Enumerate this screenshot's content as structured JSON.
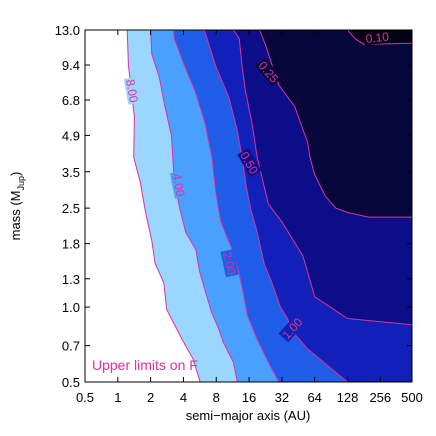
{
  "chart_data": {
    "type": "contour",
    "xlabel": "semi−major axis (AU)",
    "ylabel_main": "mass (M",
    "ylabel_sub": "Jup",
    "ylabel_close": ")",
    "x_scale": "log2",
    "y_scale": "log",
    "xlim": [
      0.5,
      500
    ],
    "ylim": [
      0.5,
      13.0
    ],
    "x_ticks": [
      0.5,
      1,
      2,
      4,
      8,
      16,
      32,
      64,
      128,
      256,
      500
    ],
    "x_tick_labels": [
      "0.5",
      "1",
      "2",
      "4",
      "8",
      "16",
      "32",
      "64",
      "128",
      "256",
      "500"
    ],
    "y_ticks": [
      0.5,
      0.7,
      1.0,
      1.3,
      1.8,
      2.5,
      3.5,
      4.9,
      6.8,
      9.4,
      13.0
    ],
    "y_tick_labels": [
      "0.5",
      "0.7",
      "1.0",
      "1.3",
      "1.8",
      "2.5",
      "3.5",
      "4.9",
      "6.8",
      "9.4",
      "13.0"
    ],
    "annotation": "Upper limits on F",
    "line_color": "#e0309a",
    "contours": [
      {
        "level": 8.0,
        "label": "8.00",
        "fill": "#9ad6ff",
        "label_at": [
          1.35,
          7.4
        ],
        "label_rotation": 80,
        "boundary": [
          [
            1.22,
            13.0
          ],
          [
            1.25,
            9.4
          ],
          [
            1.42,
            5.8
          ],
          [
            1.4,
            4.0
          ],
          [
            1.6,
            3.2
          ],
          [
            1.8,
            2.4
          ],
          [
            2.05,
            1.85
          ],
          [
            2.2,
            1.5
          ],
          [
            2.65,
            1.25
          ],
          [
            2.8,
            0.98
          ],
          [
            3.9,
            0.74
          ],
          [
            4.9,
            0.62
          ],
          [
            5.7,
            0.5
          ]
        ]
      },
      {
        "level": 4.0,
        "label": "4.00",
        "fill": "#4aa0ff",
        "label_at": [
          3.6,
          3.1
        ],
        "label_rotation": 78,
        "boundary": [
          [
            2.0,
            13.0
          ],
          [
            2.05,
            10.4
          ],
          [
            2.4,
            8.4
          ],
          [
            2.65,
            6.7
          ],
          [
            3.1,
            4.9
          ],
          [
            3.3,
            3.2
          ],
          [
            3.7,
            2.5
          ],
          [
            4.2,
            2.0
          ],
          [
            5.2,
            1.7
          ],
          [
            5.6,
            1.4
          ],
          [
            6.2,
            1.2
          ],
          [
            7.2,
            0.96
          ],
          [
            8.4,
            0.82
          ],
          [
            9.3,
            0.72
          ],
          [
            11.5,
            0.6
          ],
          [
            12.5,
            0.5
          ]
        ]
      },
      {
        "level": 2.0,
        "label": "2.00",
        "fill": "#1f5ce8",
        "label_at": [
          10.5,
          1.5
        ],
        "label_rotation": 78,
        "boundary": [
          [
            3.25,
            13.0
          ],
          [
            3.3,
            12.0
          ],
          [
            4.1,
            9.3
          ],
          [
            5.1,
            7.4
          ],
          [
            6.3,
            5.5
          ],
          [
            7.3,
            4.0
          ],
          [
            7.9,
            2.9
          ],
          [
            8.8,
            2.2
          ],
          [
            11.2,
            1.7
          ],
          [
            12.8,
            1.4
          ],
          [
            13.8,
            1.2
          ],
          [
            15.4,
            0.93
          ],
          [
            19.0,
            0.74
          ],
          [
            24.0,
            0.6
          ],
          [
            30.0,
            0.5
          ]
        ]
      },
      {
        "level": 1.0,
        "label": "1.00",
        "fill": "#1020b8",
        "label_at": [
          40,
          0.82
        ],
        "label_rotation": -48,
        "boundary": [
          [
            6.2,
            13.0
          ],
          [
            6.6,
            12.0
          ],
          [
            7.9,
            9.3
          ],
          [
            10.4,
            7.0
          ],
          [
            12.4,
            5.2
          ],
          [
            13.8,
            4.0
          ],
          [
            15.2,
            3.0
          ],
          [
            16.5,
            2.5
          ],
          [
            19.0,
            2.0
          ],
          [
            22.0,
            1.5
          ],
          [
            26.0,
            1.25
          ],
          [
            31.0,
            1.0
          ],
          [
            36.0,
            0.9
          ],
          [
            40.0,
            0.8
          ],
          [
            55.0,
            0.68
          ],
          [
            85.0,
            0.58
          ],
          [
            128.0,
            0.5
          ]
        ]
      },
      {
        "level": 0.5,
        "label": "0.50",
        "fill": "#0b0e88",
        "label_at": [
          16,
          3.8
        ],
        "label_rotation": 60,
        "boundary": [
          [
            11.5,
            13.0
          ],
          [
            13.0,
            12.0
          ],
          [
            13.8,
            9.3
          ],
          [
            14.8,
            7.4
          ],
          [
            17.0,
            5.5
          ],
          [
            19.0,
            4.0
          ],
          [
            24.0,
            2.6
          ],
          [
            32.0,
            2.2
          ],
          [
            50.0,
            1.6
          ],
          [
            64.0,
            1.1
          ],
          [
            128.0,
            0.9
          ],
          [
            500.0,
            0.85
          ]
        ]
      },
      {
        "level": 0.25,
        "label": "0.25",
        "fill": "#05073c",
        "label_at": [
          24,
          8.8
        ],
        "label_rotation": 50,
        "boundary": [
          [
            20.0,
            13.0
          ],
          [
            22.5,
            11.4
          ],
          [
            30.0,
            7.8
          ],
          [
            42.0,
            6.4
          ],
          [
            55.0,
            4.6
          ],
          [
            58.0,
            4.0
          ],
          [
            64.0,
            3.4
          ],
          [
            80.0,
            2.8
          ],
          [
            100.0,
            2.5
          ],
          [
            128.0,
            2.4
          ],
          [
            200.0,
            2.3
          ],
          [
            280.0,
            2.3
          ],
          [
            500.0,
            2.3
          ]
        ]
      },
      {
        "level": 0.1,
        "label": "0.10",
        "fill": "#020214",
        "label_at": [
          240,
          12.1
        ],
        "label_rotation": -6,
        "boundary": [
          [
            128.0,
            13.0
          ],
          [
            150.0,
            12.0
          ],
          [
            180.0,
            11.4
          ],
          [
            500.0,
            11.5
          ]
        ]
      }
    ]
  }
}
